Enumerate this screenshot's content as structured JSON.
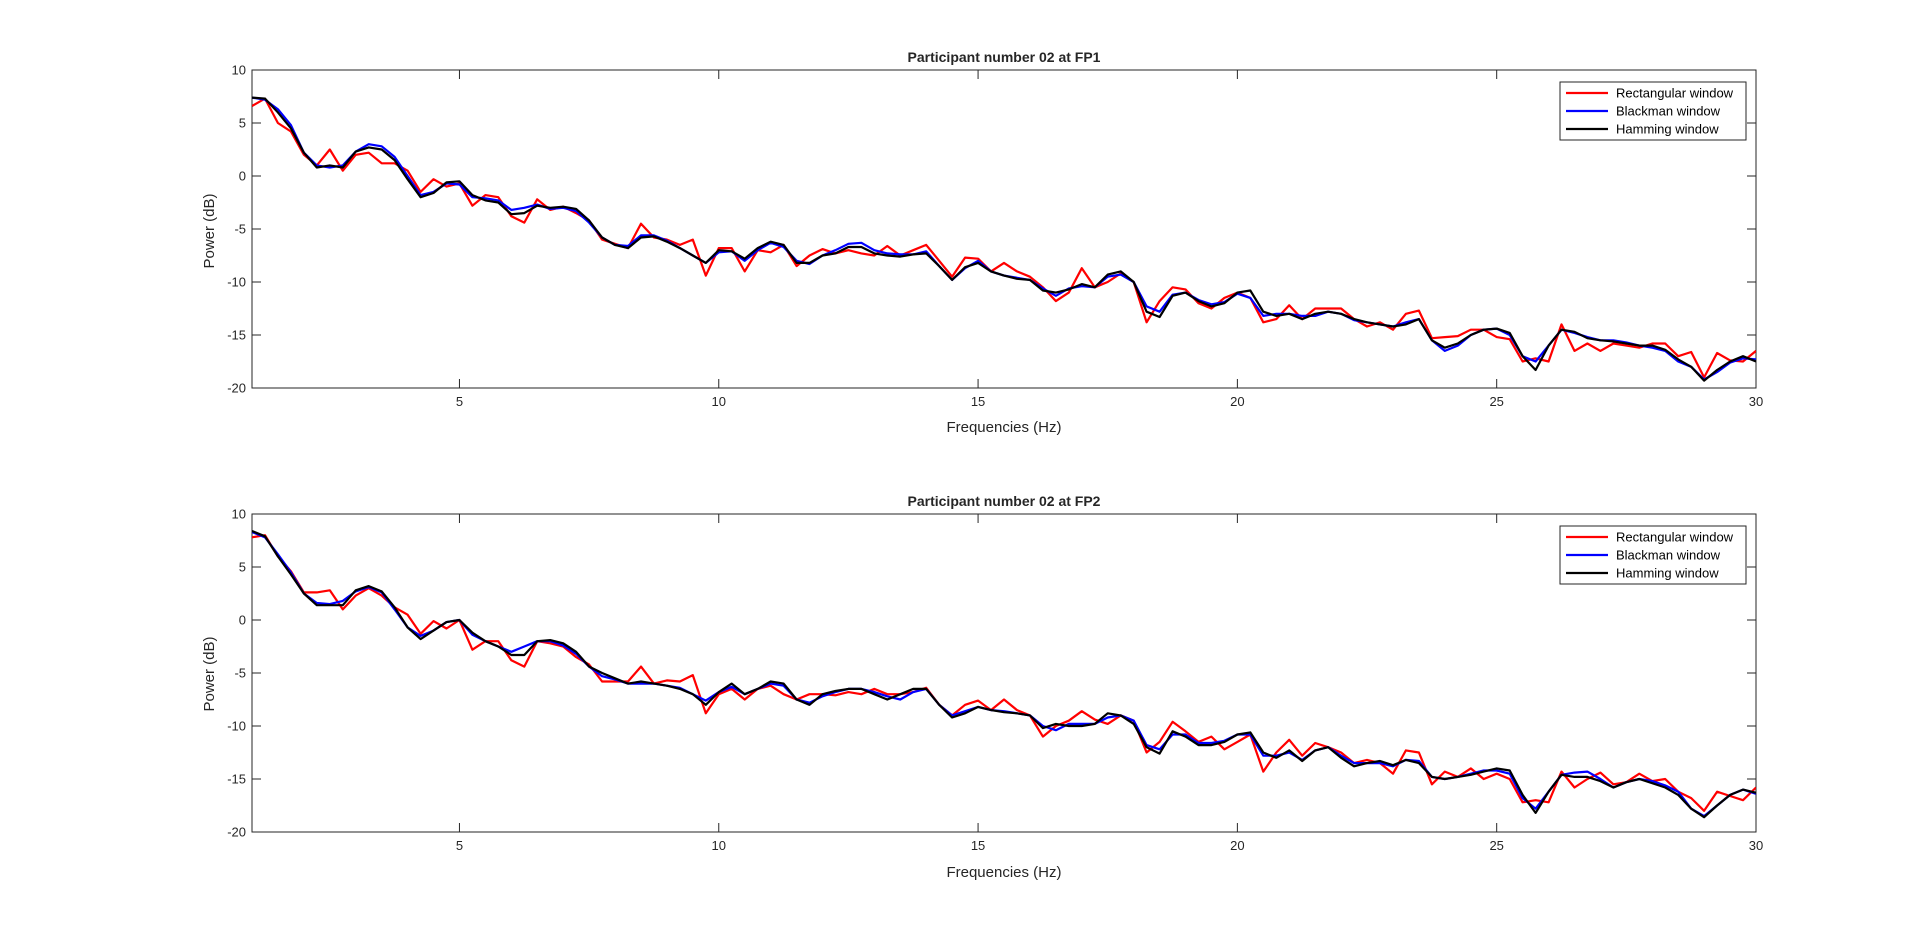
{
  "charts": [
    {
      "title": "Participant number 02 at FP1",
      "xlabel": "Frequencies (Hz)",
      "ylabel": "Power (dB)"
    },
    {
      "title": "Participant number 02 at FP2",
      "xlabel": "Frequencies (Hz)",
      "ylabel": "Power (dB)"
    }
  ],
  "chart_data": [
    {
      "type": "line",
      "title": "Participant number 02 at FP1",
      "xlabel": "Frequencies (Hz)",
      "ylabel": "Power (dB)",
      "xlim": [
        1,
        30
      ],
      "ylim": [
        -20,
        10
      ],
      "xticks": [
        "5",
        "10",
        "15",
        "20",
        "25",
        "30"
      ],
      "yticks": [
        "10",
        "5",
        "0",
        "-5",
        "-10",
        "-15",
        "-20"
      ],
      "grid": false,
      "legend_position": "top-right",
      "x": [
        1,
        1.25,
        1.5,
        1.75,
        2,
        2.25,
        2.5,
        2.75,
        3,
        3.25,
        3.5,
        3.75,
        4,
        4.25,
        4.5,
        4.75,
        5,
        5.25,
        5.5,
        5.75,
        6,
        6.25,
        6.5,
        6.75,
        7,
        7.25,
        7.5,
        7.75,
        8,
        8.25,
        8.5,
        8.75,
        9,
        9.25,
        9.5,
        9.75,
        10,
        10.25,
        10.5,
        10.75,
        11,
        11.25,
        11.5,
        11.75,
        12,
        12.25,
        12.5,
        12.75,
        13,
        13.25,
        13.5,
        13.75,
        14,
        14.25,
        14.5,
        14.75,
        15,
        15.25,
        15.5,
        15.75,
        16,
        16.25,
        16.5,
        16.75,
        17,
        17.25,
        17.5,
        17.75,
        18,
        18.25,
        18.5,
        18.75,
        19,
        19.25,
        19.5,
        19.75,
        20,
        20.25,
        20.5,
        20.75,
        21,
        21.25,
        21.5,
        21.75,
        22,
        22.25,
        22.5,
        22.75,
        23,
        23.25,
        23.5,
        23.75,
        24,
        24.25,
        24.5,
        24.75,
        25,
        25.25,
        25.5,
        25.75,
        26,
        26.25,
        26.5,
        26.75,
        27,
        27.25,
        27.5,
        27.75,
        28,
        28.25,
        28.5,
        28.75,
        29,
        29.25,
        29.5,
        29.75,
        30
      ],
      "series": [
        {
          "name": "Rectangular window",
          "color": "#ff0000",
          "values": [
            6.6,
            7.3,
            5.0,
            4.2,
            2.0,
            1.0,
            2.5,
            0.5,
            2.0,
            2.2,
            1.2,
            1.2,
            0.5,
            -1.5,
            -0.3,
            -1.0,
            -0.7,
            -2.8,
            -1.8,
            -2.0,
            -3.8,
            -4.4,
            -2.2,
            -3.2,
            -2.9,
            -3.5,
            -4.2,
            -6.0,
            -6.4,
            -6.8,
            -4.5,
            -5.8,
            -6.0,
            -6.5,
            -6.0,
            -9.4,
            -6.8,
            -6.8,
            -9.0,
            -7.0,
            -7.2,
            -6.5,
            -8.5,
            -7.5,
            -6.9,
            -7.3,
            -7.0,
            -7.3,
            -7.5,
            -6.6,
            -7.5,
            -7.0,
            -6.5,
            -8.0,
            -9.5,
            -7.7,
            -7.8,
            -9.0,
            -8.2,
            -9.0,
            -9.5,
            -10.5,
            -11.8,
            -11.0,
            -8.7,
            -10.5,
            -10.0,
            -9.2,
            -10.0,
            -13.8,
            -11.8,
            -10.5,
            -10.7,
            -12.0,
            -12.5,
            -11.5,
            -11.0,
            -11.5,
            -13.8,
            -13.5,
            -12.2,
            -13.5,
            -12.5,
            -12.5,
            -12.5,
            -13.5,
            -14.2,
            -13.8,
            -14.5,
            -13.0,
            -12.7,
            -15.3,
            -15.2,
            -15.1,
            -14.5,
            -14.5,
            -15.2,
            -15.4,
            -17.5,
            -17.2,
            -17.5,
            -14.0,
            -16.5,
            -15.8,
            -16.5,
            -15.8,
            -16.0,
            -16.2,
            -15.8,
            -15.8,
            -17.0,
            -16.6,
            -19.0,
            -16.7,
            -17.4,
            -17.5,
            -16.5
          ]
        },
        {
          "name": "Blackman window",
          "color": "#0000ff",
          "values": [
            7.4,
            7.2,
            6.3,
            4.8,
            2.2,
            1.0,
            0.8,
            1.0,
            2.3,
            3.0,
            2.8,
            1.8,
            0.0,
            -1.8,
            -1.5,
            -0.7,
            -0.8,
            -2.0,
            -2.1,
            -2.3,
            -3.2,
            -3.0,
            -2.7,
            -3.1,
            -3.0,
            -3.3,
            -4.4,
            -5.8,
            -6.5,
            -6.6,
            -5.6,
            -5.6,
            -6.1,
            -6.8,
            -7.5,
            -8.2,
            -7.2,
            -7.1,
            -8.0,
            -7.0,
            -6.3,
            -6.7,
            -8.0,
            -8.3,
            -7.5,
            -7.0,
            -6.4,
            -6.3,
            -7.0,
            -7.3,
            -7.4,
            -7.4,
            -7.1,
            -8.5,
            -9.8,
            -8.7,
            -8.0,
            -9.0,
            -9.4,
            -9.6,
            -9.8,
            -10.6,
            -11.3,
            -10.6,
            -10.4,
            -10.5,
            -9.5,
            -9.3,
            -10.0,
            -12.3,
            -12.8,
            -11.2,
            -11.0,
            -11.7,
            -12.1,
            -11.9,
            -11.1,
            -11.5,
            -13.2,
            -13.0,
            -13.0,
            -13.2,
            -13.2,
            -12.8,
            -13.0,
            -13.6,
            -13.8,
            -14.0,
            -14.2,
            -13.8,
            -13.5,
            -15.5,
            -16.5,
            -16.0,
            -15.0,
            -14.5,
            -14.4,
            -15.0,
            -17.0,
            -17.5,
            -16.0,
            -14.5,
            -14.8,
            -15.2,
            -15.5,
            -15.5,
            -15.7,
            -16.0,
            -16.2,
            -16.5,
            -17.5,
            -18.0,
            -19.2,
            -18.5,
            -17.6,
            -17.2,
            -17.3
          ]
        },
        {
          "name": "Hamming window",
          "color": "#000000",
          "values": [
            7.4,
            7.3,
            6.0,
            4.5,
            2.2,
            0.8,
            1.0,
            0.8,
            2.3,
            2.7,
            2.5,
            1.5,
            -0.3,
            -2.0,
            -1.6,
            -0.6,
            -0.5,
            -1.8,
            -2.3,
            -2.5,
            -3.6,
            -3.5,
            -2.8,
            -3.0,
            -2.9,
            -3.1,
            -4.2,
            -5.8,
            -6.5,
            -6.8,
            -5.8,
            -5.7,
            -6.2,
            -6.8,
            -7.5,
            -8.2,
            -7.0,
            -7.1,
            -7.8,
            -6.8,
            -6.2,
            -6.5,
            -8.2,
            -8.2,
            -7.5,
            -7.3,
            -6.7,
            -6.7,
            -7.3,
            -7.5,
            -7.6,
            -7.4,
            -7.3,
            -8.5,
            -9.8,
            -8.6,
            -8.2,
            -9.0,
            -9.4,
            -9.7,
            -9.8,
            -10.8,
            -11.0,
            -10.7,
            -10.2,
            -10.5,
            -9.3,
            -9.0,
            -10.0,
            -12.8,
            -13.3,
            -11.3,
            -11.0,
            -11.8,
            -12.3,
            -12.0,
            -11.0,
            -10.8,
            -12.8,
            -13.2,
            -13.0,
            -13.5,
            -13.0,
            -12.8,
            -13.0,
            -13.5,
            -13.8,
            -14.0,
            -14.2,
            -14.0,
            -13.5,
            -15.5,
            -16.2,
            -15.8,
            -15.0,
            -14.5,
            -14.4,
            -14.8,
            -17.0,
            -18.3,
            -16.0,
            -14.5,
            -14.7,
            -15.3,
            -15.5,
            -15.6,
            -15.8,
            -16.0,
            -16.0,
            -16.4,
            -17.3,
            -18.0,
            -19.3,
            -18.3,
            -17.5,
            -17.0,
            -17.5
          ]
        }
      ]
    },
    {
      "type": "line",
      "title": "Participant number 02 at FP2",
      "xlabel": "Frequencies (Hz)",
      "ylabel": "Power (dB)",
      "xlim": [
        1,
        30
      ],
      "ylim": [
        -20,
        10
      ],
      "xticks": [
        "5",
        "10",
        "15",
        "20",
        "25",
        "30"
      ],
      "yticks": [
        "10",
        "5",
        "0",
        "-5",
        "-10",
        "-15",
        "-20"
      ],
      "grid": false,
      "legend_position": "top-right",
      "x": [
        1,
        1.25,
        1.5,
        1.75,
        2,
        2.25,
        2.5,
        2.75,
        3,
        3.25,
        3.5,
        3.75,
        4,
        4.25,
        4.5,
        4.75,
        5,
        5.25,
        5.5,
        5.75,
        6,
        6.25,
        6.5,
        6.75,
        7,
        7.25,
        7.5,
        7.75,
        8,
        8.25,
        8.5,
        8.75,
        9,
        9.25,
        9.5,
        9.75,
        10,
        10.25,
        10.5,
        10.75,
        11,
        11.25,
        11.5,
        11.75,
        12,
        12.25,
        12.5,
        12.75,
        13,
        13.25,
        13.5,
        13.75,
        14,
        14.25,
        14.5,
        14.75,
        15,
        15.25,
        15.5,
        15.75,
        16,
        16.25,
        16.5,
        16.75,
        17,
        17.25,
        17.5,
        17.75,
        18,
        18.25,
        18.5,
        18.75,
        19,
        19.25,
        19.5,
        19.75,
        20,
        20.25,
        20.5,
        20.75,
        21,
        21.25,
        21.5,
        21.75,
        22,
        22.25,
        22.5,
        22.75,
        23,
        23.25,
        23.5,
        23.75,
        24,
        24.25,
        24.5,
        24.75,
        25,
        25.25,
        25.5,
        25.75,
        26,
        26.25,
        26.5,
        26.75,
        27,
        27.25,
        27.5,
        27.75,
        28,
        28.25,
        28.5,
        28.75,
        29,
        29.25,
        29.5,
        29.75,
        30
      ],
      "series": [
        {
          "name": "Rectangular window",
          "color": "#ff0000",
          "values": [
            7.8,
            8.0,
            6.0,
            4.6,
            2.6,
            2.6,
            2.8,
            1.0,
            2.3,
            3.0,
            2.3,
            1.2,
            0.5,
            -1.3,
            -0.1,
            -0.8,
            0.0,
            -2.8,
            -2.0,
            -2.0,
            -3.8,
            -4.4,
            -2.0,
            -2.2,
            -2.5,
            -3.5,
            -4.2,
            -5.8,
            -5.8,
            -5.8,
            -4.4,
            -6.0,
            -5.7,
            -5.8,
            -5.2,
            -8.8,
            -7.0,
            -6.5,
            -7.5,
            -6.5,
            -6.2,
            -7.0,
            -7.5,
            -7.0,
            -7.0,
            -7.1,
            -6.8,
            -7.0,
            -6.5,
            -7.0,
            -7.0,
            -6.8,
            -6.4,
            -8.0,
            -9.0,
            -8.0,
            -7.6,
            -8.5,
            -7.5,
            -8.5,
            -9.0,
            -11.0,
            -10.0,
            -9.5,
            -8.6,
            -9.4,
            -9.8,
            -9.0,
            -9.5,
            -12.5,
            -11.5,
            -9.6,
            -10.5,
            -11.5,
            -11.0,
            -12.2,
            -11.5,
            -10.8,
            -14.3,
            -12.5,
            -11.3,
            -12.8,
            -11.6,
            -12.0,
            -12.5,
            -13.5,
            -13.2,
            -13.5,
            -14.5,
            -12.3,
            -12.5,
            -15.5,
            -14.3,
            -14.8,
            -14.0,
            -15.0,
            -14.5,
            -15.0,
            -17.2,
            -17.0,
            -17.2,
            -14.3,
            -15.8,
            -15.0,
            -14.4,
            -15.5,
            -15.3,
            -14.5,
            -15.2,
            -15.0,
            -16.2,
            -16.8,
            -18.0,
            -16.2,
            -16.6,
            -17.0,
            -15.8
          ]
        },
        {
          "name": "Blackman window",
          "color": "#0000ff",
          "values": [
            8.3,
            7.8,
            6.2,
            4.5,
            2.5,
            1.6,
            1.5,
            1.8,
            2.7,
            3.1,
            2.6,
            1.0,
            -0.7,
            -1.5,
            -1.0,
            -0.2,
            0.0,
            -1.4,
            -2.0,
            -2.5,
            -3.0,
            -2.5,
            -2.0,
            -2.0,
            -2.4,
            -3.2,
            -4.4,
            -5.3,
            -5.6,
            -6.0,
            -6.0,
            -6.0,
            -6.2,
            -6.4,
            -7.0,
            -7.6,
            -6.8,
            -6.3,
            -7.0,
            -6.5,
            -6.0,
            -6.2,
            -7.5,
            -7.8,
            -7.2,
            -6.8,
            -6.5,
            -6.5,
            -6.8,
            -7.2,
            -7.5,
            -6.8,
            -6.5,
            -8.0,
            -9.0,
            -8.6,
            -8.2,
            -8.5,
            -8.6,
            -8.8,
            -9.0,
            -10.0,
            -10.4,
            -9.8,
            -9.8,
            -9.8,
            -9.2,
            -9.0,
            -9.5,
            -11.8,
            -12.2,
            -10.8,
            -10.8,
            -11.6,
            -11.6,
            -11.4,
            -10.8,
            -10.8,
            -12.8,
            -12.8,
            -12.5,
            -13.2,
            -12.3,
            -12.0,
            -12.8,
            -13.5,
            -13.5,
            -13.5,
            -13.8,
            -13.2,
            -13.3,
            -14.8,
            -15.0,
            -14.8,
            -14.5,
            -14.2,
            -14.2,
            -14.5,
            -16.8,
            -17.8,
            -16.2,
            -14.6,
            -14.4,
            -14.3,
            -15.0,
            -15.8,
            -15.3,
            -15.0,
            -15.2,
            -15.6,
            -16.2,
            -17.8,
            -18.5,
            -17.5,
            -16.5,
            -16.0,
            -16.4
          ]
        },
        {
          "name": "Hamming window",
          "color": "#000000",
          "values": [
            8.4,
            7.9,
            6.0,
            4.3,
            2.5,
            1.4,
            1.4,
            1.4,
            2.8,
            3.2,
            2.7,
            1.2,
            -0.7,
            -1.8,
            -1.0,
            -0.2,
            0.0,
            -1.2,
            -2.0,
            -2.5,
            -3.3,
            -3.3,
            -2.0,
            -1.9,
            -2.2,
            -3.0,
            -4.4,
            -5.0,
            -5.5,
            -6.0,
            -5.8,
            -6.0,
            -6.2,
            -6.5,
            -7.0,
            -8.0,
            -6.8,
            -6.0,
            -7.0,
            -6.5,
            -5.8,
            -6.0,
            -7.5,
            -8.0,
            -7.0,
            -6.7,
            -6.5,
            -6.5,
            -7.0,
            -7.5,
            -7.0,
            -6.5,
            -6.5,
            -8.0,
            -9.2,
            -8.8,
            -8.2,
            -8.5,
            -8.7,
            -8.8,
            -9.0,
            -10.2,
            -9.8,
            -10.0,
            -10.0,
            -9.8,
            -8.8,
            -9.0,
            -9.8,
            -12.0,
            -12.6,
            -10.5,
            -11.0,
            -11.8,
            -11.8,
            -11.5,
            -10.8,
            -10.6,
            -12.5,
            -13.0,
            -12.3,
            -13.3,
            -12.3,
            -12.0,
            -13.0,
            -13.8,
            -13.5,
            -13.3,
            -13.7,
            -13.2,
            -13.5,
            -14.8,
            -15.0,
            -14.8,
            -14.6,
            -14.3,
            -14.0,
            -14.2,
            -16.5,
            -18.2,
            -16.2,
            -14.6,
            -14.8,
            -14.8,
            -15.2,
            -15.8,
            -15.3,
            -15.0,
            -15.4,
            -15.8,
            -16.5,
            -17.8,
            -18.6,
            -17.5,
            -16.5,
            -16.0,
            -16.3
          ]
        }
      ]
    }
  ]
}
